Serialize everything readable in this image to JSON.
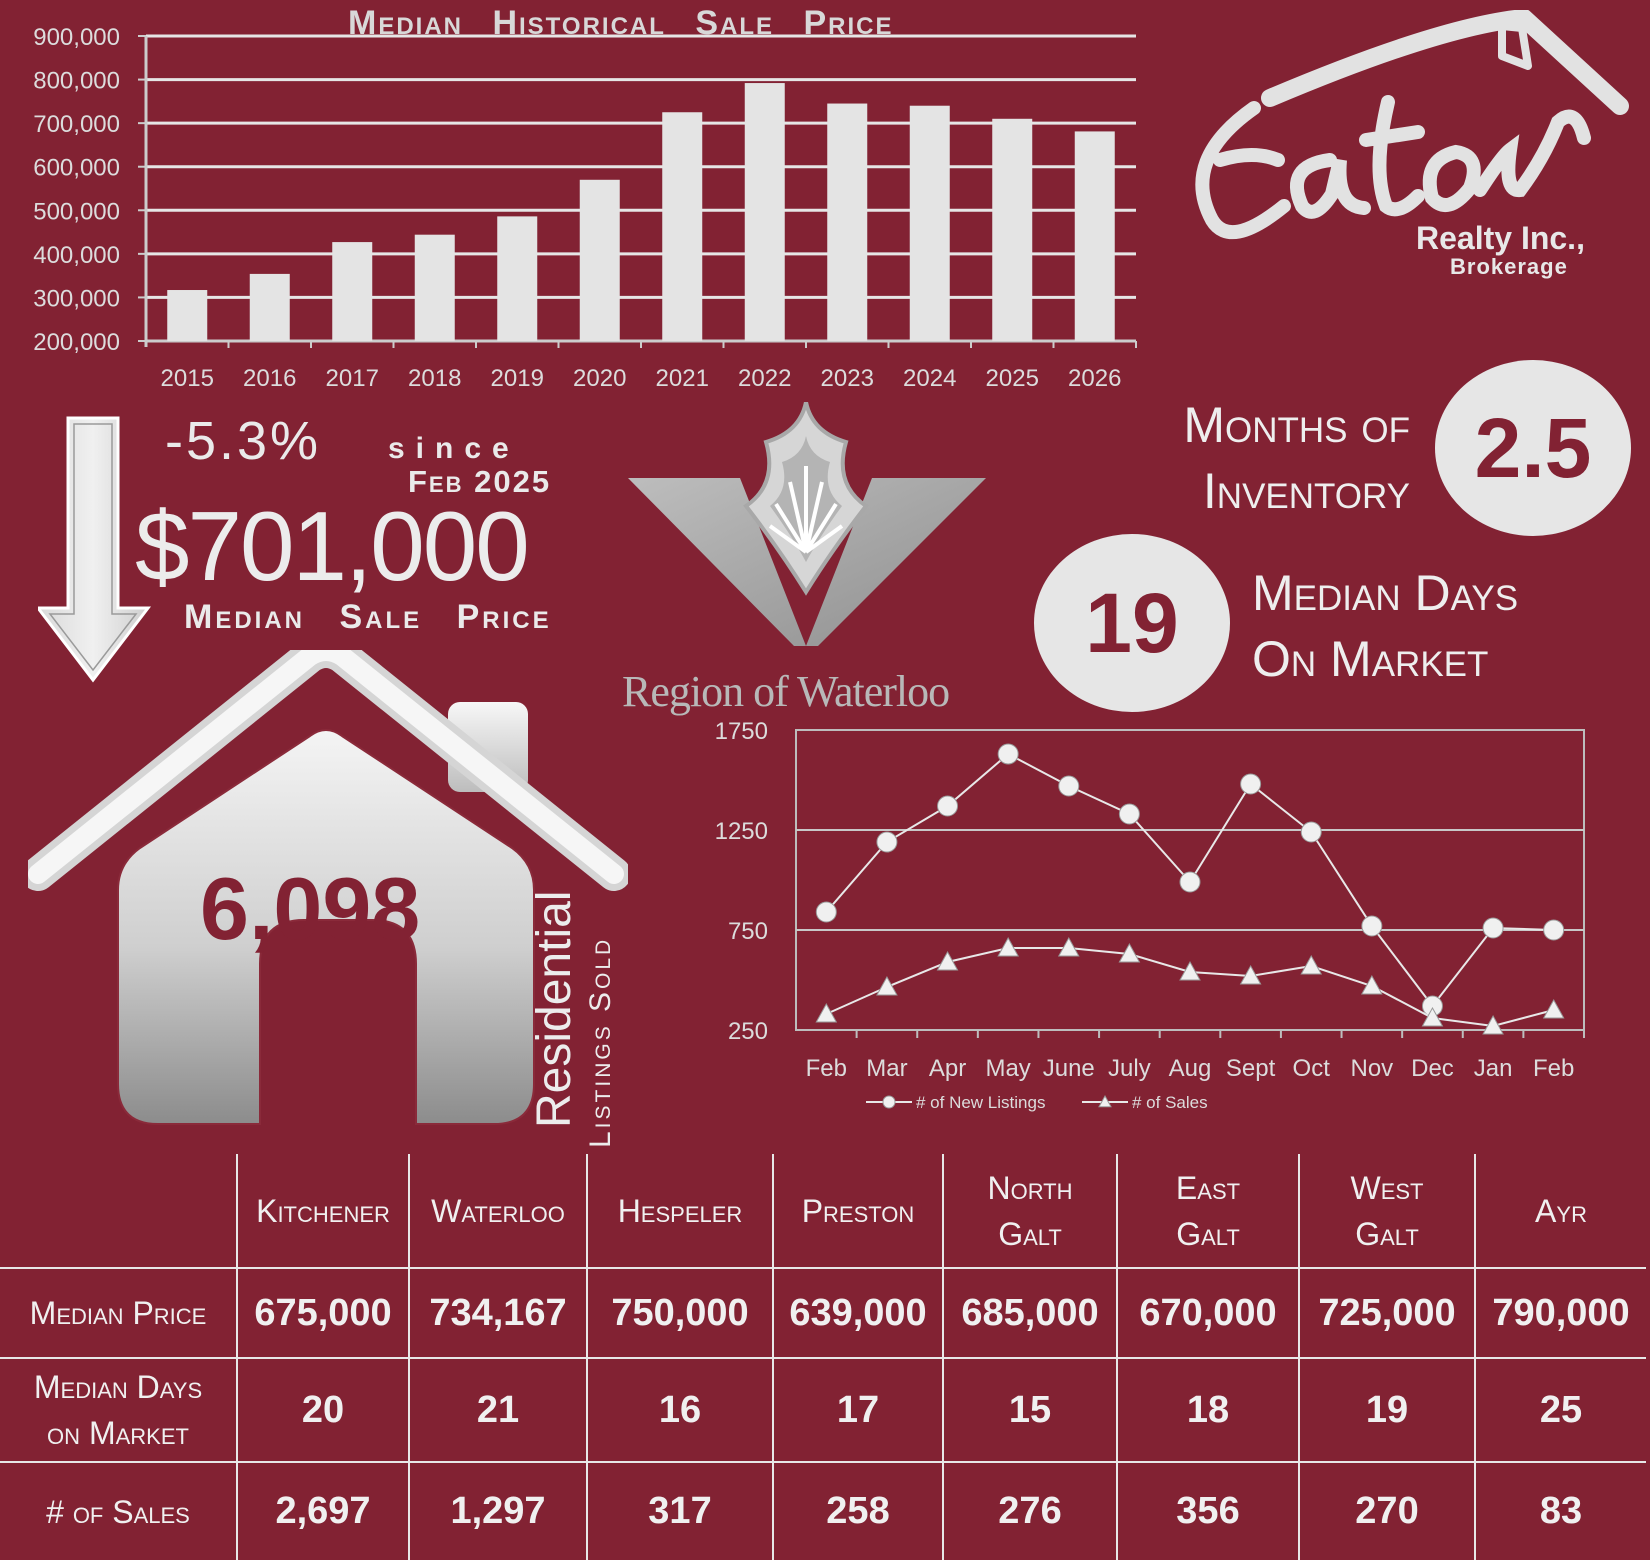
{
  "bar_chart_title": "Median Historical Sale Price",
  "chart_data": [
    {
      "type": "bar",
      "title": "Median Historical Sale Price",
      "categories": [
        "2015",
        "2016",
        "2017",
        "2018",
        "2019",
        "2020",
        "2021",
        "2022",
        "2023",
        "2024",
        "2025",
        "2026"
      ],
      "values": [
        317000,
        354000,
        427000,
        444000,
        486000,
        570000,
        725000,
        792000,
        745000,
        740000,
        710000,
        681000
      ],
      "ylim": [
        200000,
        900000
      ],
      "y_ticks": [
        "200,000",
        "300,000",
        "400,000",
        "500,000",
        "600,000",
        "700,000",
        "800,000",
        "900,000"
      ],
      "grid": true
    },
    {
      "type": "line",
      "categories": [
        "Feb",
        "Mar",
        "Apr",
        "May",
        "June",
        "July",
        "Aug",
        "Sept",
        "Oct",
        "Nov",
        "Dec",
        "Jan",
        "Feb"
      ],
      "series": [
        {
          "name": "# of New Listings",
          "marker": "circle",
          "values": [
            840,
            1190,
            1370,
            1630,
            1470,
            1330,
            990,
            1480,
            1240,
            770,
            370,
            760,
            750
          ]
        },
        {
          "name": "# of Sales",
          "marker": "triangle",
          "values": [
            330,
            465,
            590,
            660,
            660,
            630,
            540,
            520,
            570,
            470,
            310,
            270,
            350
          ]
        }
      ],
      "ylim": [
        250,
        1750
      ],
      "y_ticks": [
        "250",
        "750",
        "1250",
        "1750"
      ],
      "legend_position": "bottom",
      "grid": true
    }
  ],
  "change": {
    "percent": "-5.3%",
    "since_label": "since",
    "since_date": "Feb 2025",
    "price": "$701,000",
    "price_label": "Median Sale Price"
  },
  "sold": {
    "count": "6,098",
    "label_main": "Residential",
    "label_sub": "Listings Sold"
  },
  "region": {
    "name": "Region of Waterloo"
  },
  "logo": {
    "script_name": "Eaton",
    "company": "Realty Inc.,",
    "sub": "Brokerage"
  },
  "inventory": {
    "label_line1": "Months of",
    "label_line2": "Inventory",
    "value": "2.5"
  },
  "days": {
    "value": "19",
    "label_line1": "Median Days",
    "label_line2": "On Market"
  },
  "table": {
    "columns": [
      {
        "line1": "Kitchener",
        "line2": ""
      },
      {
        "line1": "Waterloo",
        "line2": ""
      },
      {
        "line1": "Hespeler",
        "line2": ""
      },
      {
        "line1": "Preston",
        "line2": ""
      },
      {
        "line1": "North",
        "line2": "Galt"
      },
      {
        "line1": "East",
        "line2": "Galt"
      },
      {
        "line1": "West",
        "line2": "Galt"
      },
      {
        "line1": "Ayr",
        "line2": ""
      }
    ],
    "rows": [
      {
        "line1": "Median Price",
        "line2": "",
        "values": [
          "675,000",
          "734,167",
          "750,000",
          "639,000",
          "685,000",
          "670,000",
          "725,000",
          "790,000"
        ]
      },
      {
        "line1": "Median Days",
        "line2": "on Market",
        "values": [
          "20",
          "21",
          "16",
          "17",
          "15",
          "18",
          "19",
          "25"
        ]
      },
      {
        "line1": "# of Sales",
        "line2": "",
        "values": [
          "2,697",
          "1,297",
          "317",
          "258",
          "276",
          "356",
          "270",
          "83"
        ]
      }
    ]
  }
}
